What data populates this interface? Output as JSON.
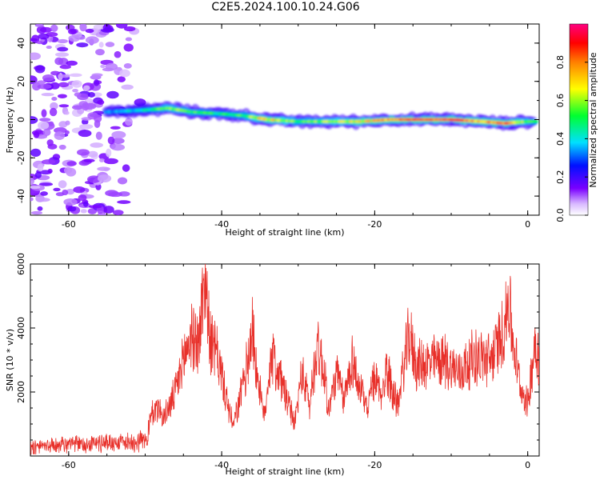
{
  "title": "C2E5.2024.100.10.24.G06",
  "colors": {
    "snr_line": "#e8302a",
    "spectrogram_low": "#7a00ff",
    "spectrogram_high": "#ff0060"
  },
  "chart_data": [
    {
      "type": "heatmap",
      "xlabel": "Height of straight line (km)",
      "ylabel": "Frequency (Hz)",
      "xlim": [
        -65,
        1.5
      ],
      "ylim": [
        -50,
        50
      ],
      "xticks": [
        "-60",
        "-40",
        "-20",
        "0"
      ],
      "yticks": [
        "-40",
        "-20",
        "0",
        "20",
        "40"
      ],
      "colorbar": {
        "label": "Normalized spectral amplitude",
        "range": [
          0,
          1
        ],
        "ticks": [
          "0.0",
          "0.2",
          "0.4",
          "0.6",
          "0.8"
        ]
      },
      "ridge": {
        "x": [
          -55,
          -50,
          -47,
          -44,
          -40,
          -37,
          -34,
          -30,
          -26,
          -22,
          -18,
          -14,
          -10,
          -6,
          -3,
          0,
          1
        ],
        "frequency": [
          4,
          5,
          6,
          4,
          3,
          2,
          0,
          -1,
          -1,
          -1,
          0,
          0,
          0,
          -1,
          -2,
          -1,
          -1
        ],
        "amplitude": [
          0.35,
          0.45,
          0.6,
          0.55,
          0.5,
          0.55,
          0.75,
          0.55,
          0.6,
          0.7,
          0.8,
          0.9,
          0.95,
          0.8,
          0.85,
          0.6,
          0.5
        ]
      },
      "noise_region_x": [
        -65,
        -50
      ]
    },
    {
      "type": "line",
      "xlabel": "Height of straight line (km)",
      "ylabel": "SNR (10 * v/v)",
      "xlim": [
        -65,
        1.5
      ],
      "ylim": [
        0,
        6000
      ],
      "xticks": [
        "-60",
        "-40",
        "-20",
        "0"
      ],
      "yticks": [
        "2000",
        "4000",
        "6000"
      ],
      "series": [
        {
          "x": [
            -65,
            -60,
            -55,
            -52,
            -50,
            -48.5,
            -47.5,
            -46,
            -45,
            -44,
            -43,
            -42.2,
            -41.5,
            -40.5,
            -39.5,
            -38.5,
            -37,
            -36,
            -35.5,
            -34.5,
            -33.5,
            -32,
            -30.5,
            -29.5,
            -28.5,
            -27.5,
            -26.5,
            -26,
            -25,
            -24,
            -23,
            -22,
            -21,
            -20,
            -19,
            -18.5,
            -17,
            -15.5,
            -14.5,
            -13,
            -11,
            -9,
            -7,
            -5,
            -4,
            -3,
            -2.5,
            -2,
            -1,
            0,
            1,
            1.5
          ],
          "values": [
            300,
            350,
            420,
            450,
            500,
            1600,
            1200,
            2000,
            3000,
            3800,
            3500,
            5700,
            3600,
            3100,
            1900,
            900,
            2400,
            4000,
            2800,
            1200,
            3200,
            2200,
            1000,
            2600,
            1600,
            3500,
            2500,
            1400,
            2600,
            1700,
            3100,
            2100,
            1500,
            2400,
            1900,
            2700,
            1600,
            3800,
            2800,
            2900,
            3000,
            2600,
            3100,
            3000,
            3400,
            4100,
            5000,
            3700,
            2200,
            1600,
            3700,
            3000
          ]
        }
      ]
    }
  ]
}
